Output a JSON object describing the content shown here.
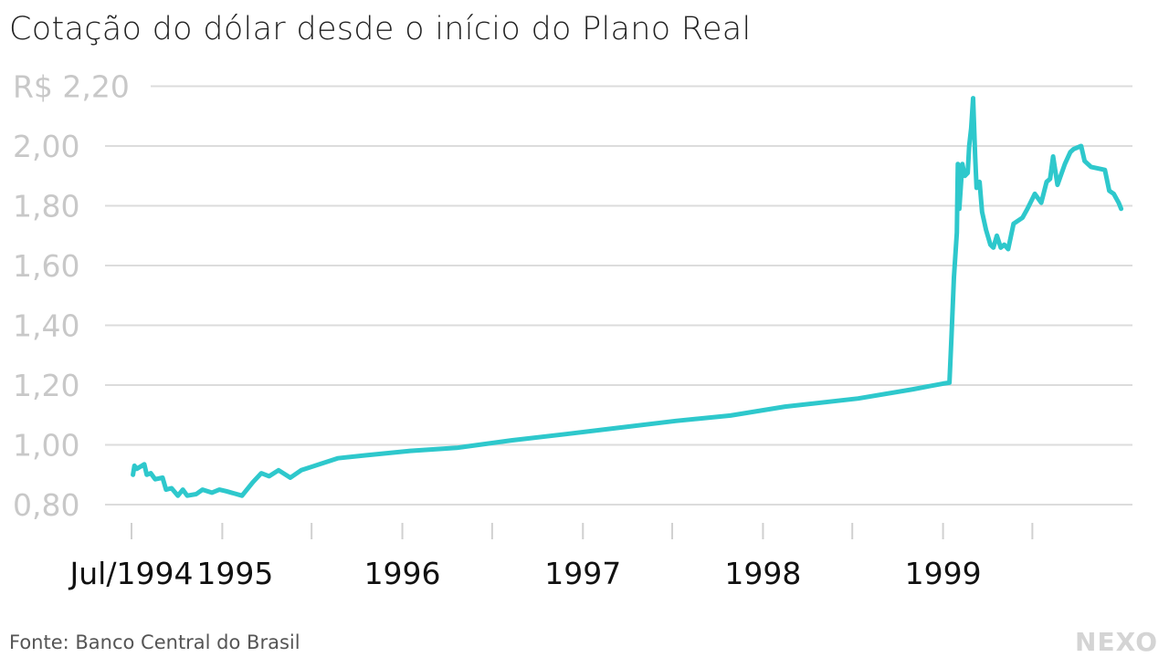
{
  "title": "Cotação do dólar desde o início do Plano Real",
  "source": "Fonte: Banco Central do Brasil",
  "logo": "NEXO",
  "chart_data": {
    "type": "line",
    "title": "Cotação do dólar desde o início do Plano Real",
    "xlabel": "",
    "ylabel": "",
    "ylim": [
      0.8,
      2.2
    ],
    "xlim": [
      "1994-07-01",
      "1999-12-31"
    ],
    "grid": "horizontal",
    "line_color": "#2ec8cc",
    "y_ticks": [
      {
        "value": 0.8,
        "label": "0,80"
      },
      {
        "value": 1.0,
        "label": "1,00"
      },
      {
        "value": 1.2,
        "label": "1,20"
      },
      {
        "value": 1.4,
        "label": "1,40"
      },
      {
        "value": 1.6,
        "label": "1,60"
      },
      {
        "value": 1.8,
        "label": "1,80"
      },
      {
        "value": 2.0,
        "label": "2,00"
      },
      {
        "value": 2.2,
        "label": "R$ 2,20"
      }
    ],
    "x_ticks": [
      "1994-07-01",
      "1995-01-01",
      "1995-07-01",
      "1996-01-01",
      "1996-07-01",
      "1997-01-01",
      "1997-07-01",
      "1998-01-01",
      "1998-07-01",
      "1999-01-01",
      "1999-07-01"
    ],
    "x_labels": [
      {
        "date": "1994-07-01",
        "label": "Jul/1994"
      },
      {
        "date": "1995-01-01",
        "label": "1995"
      },
      {
        "date": "1996-01-01",
        "label": "1996"
      },
      {
        "date": "1997-01-01",
        "label": "1997"
      },
      {
        "date": "1998-01-01",
        "label": "1998"
      },
      {
        "date": "1999-01-01",
        "label": "1999"
      }
    ],
    "series": [
      {
        "x": [
          "1994-07-04",
          "1994-07-07",
          "1994-07-12",
          "1994-07-27",
          "1994-08-01",
          "1994-08-09",
          "1994-08-18",
          "1994-09-02",
          "1994-09-09",
          "1994-09-20",
          "1994-10-03",
          "1994-10-13",
          "1994-10-22",
          "1994-11-09",
          "1994-11-22",
          "1994-12-11",
          "1994-12-26",
          "1995-01-09",
          "1995-02-10",
          "1995-03-04",
          "1995-03-21",
          "1995-04-06",
          "1995-04-25",
          "1995-05-19",
          "1995-06-10",
          "1995-07-17",
          "1995-08-23",
          "1995-10-18",
          "1996-01-17",
          "1996-04-20",
          "1996-08-09",
          "1996-11-28",
          "1997-03-19",
          "1997-07-08",
          "1997-10-27",
          "1998-02-15",
          "1998-07-13",
          "1998-11-01",
          "1999-01-01",
          "1999-01-14",
          "1999-01-18",
          "1999-01-23",
          "1999-01-29",
          "1999-01-31",
          "1999-02-03",
          "1999-02-09",
          "1999-02-14",
          "1999-02-20",
          "1999-02-23",
          "1999-02-27",
          "1999-03-03",
          "1999-03-07",
          "1999-03-10",
          "1999-03-16",
          "1999-03-21",
          "1999-03-29",
          "1999-04-07",
          "1999-04-13",
          "1999-04-20",
          "1999-04-28",
          "1999-05-05",
          "1999-05-13",
          "1999-05-24",
          "1999-06-11",
          "1999-06-21",
          "1999-07-06",
          "1999-07-19",
          "1999-07-30",
          "1999-08-06",
          "1999-08-12",
          "1999-08-21",
          "1999-09-05",
          "1999-09-16",
          "1999-09-23",
          "1999-10-08",
          "1999-10-15",
          "1999-10-28",
          "1999-11-25",
          "1999-12-04",
          "1999-12-13",
          "1999-12-23",
          "1999-12-28"
        ],
        "y": [
          0.9,
          0.93,
          0.92,
          0.935,
          0.9,
          0.905,
          0.885,
          0.89,
          0.85,
          0.855,
          0.83,
          0.85,
          0.83,
          0.835,
          0.85,
          0.84,
          0.85,
          0.845,
          0.83,
          0.875,
          0.905,
          0.895,
          0.915,
          0.89,
          0.915,
          0.935,
          0.955,
          0.965,
          0.98,
          0.99,
          1.015,
          1.036,
          1.058,
          1.08,
          1.098,
          1.128,
          1.155,
          1.186,
          1.205,
          1.208,
          1.36,
          1.56,
          1.71,
          1.94,
          1.79,
          1.94,
          1.9,
          1.91,
          2.0,
          2.06,
          2.16,
          1.97,
          1.86,
          1.88,
          1.78,
          1.72,
          1.67,
          1.66,
          1.7,
          1.66,
          1.67,
          1.655,
          1.74,
          1.76,
          1.79,
          1.84,
          1.81,
          1.88,
          1.89,
          1.965,
          1.87,
          1.94,
          1.98,
          1.99,
          2.0,
          1.95,
          1.93,
          1.92,
          1.85,
          1.84,
          1.81,
          1.79
        ]
      }
    ]
  }
}
